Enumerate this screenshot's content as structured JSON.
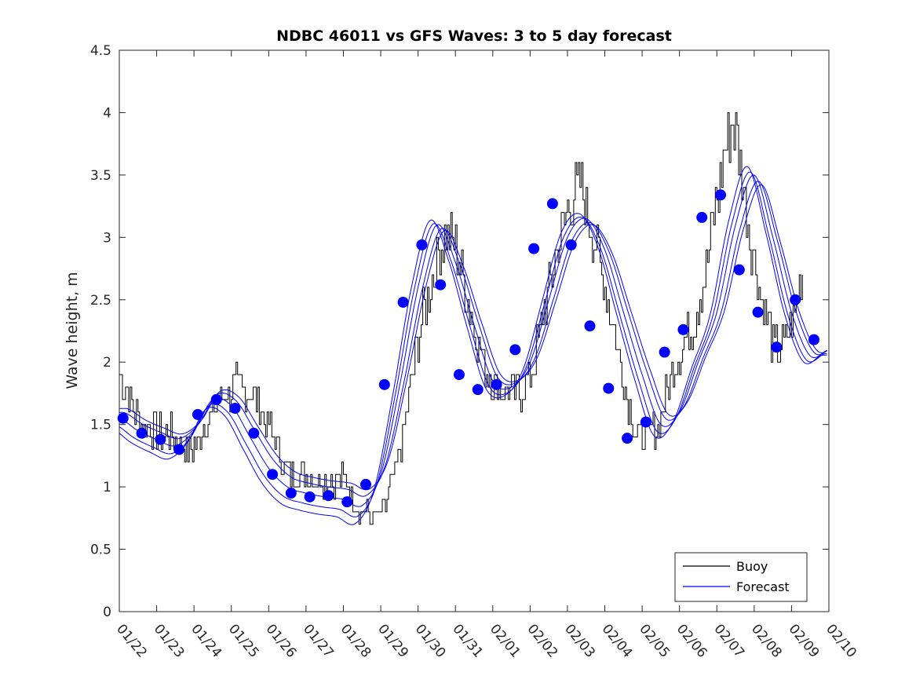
{
  "chart_data": {
    "type": "line",
    "title": "NDBC 46011 vs GFS Waves: 3 to 5 day forecast",
    "xlabel": "",
    "ylabel": "Wave height, m",
    "xlim_days": [
      0,
      19
    ],
    "ylim": [
      0,
      4.5
    ],
    "yticks": [
      "0",
      "0.5",
      "1",
      "1.5",
      "2",
      "2.5",
      "3",
      "3.5",
      "4",
      "4.5"
    ],
    "xticks": [
      "01/22",
      "01/23",
      "01/24",
      "01/25",
      "01/26",
      "01/27",
      "01/28",
      "01/29",
      "01/30",
      "01/31",
      "02/01",
      "02/02",
      "02/03",
      "02/04",
      "02/05",
      "02/06",
      "02/07",
      "02/08",
      "02/09",
      "02/10"
    ],
    "legend": {
      "location": "bottom-right",
      "entries": [
        "Buoy",
        "Forecast"
      ]
    },
    "colors": {
      "buoy": "#000000",
      "forecast": "#0000ff",
      "marker": "#0000ff",
      "axis": "#262626"
    },
    "series": [
      {
        "name": "Buoy",
        "x": [
          0,
          0.5,
          1,
          1.5,
          1.9,
          2.5,
          2.9,
          3.3,
          3.7,
          4.2,
          4.6,
          5,
          5.5,
          6,
          6.5,
          7,
          7.4,
          7.7,
          8,
          8.4,
          8.7,
          9,
          9.5,
          9.8,
          10.2,
          10.6,
          11,
          11.5,
          11.9,
          12.3,
          12.7,
          13,
          13.4,
          13.8,
          14,
          14.4,
          14.8,
          15.2,
          15.6,
          16,
          16.4,
          16.7,
          17,
          17.3,
          17.6,
          18,
          18.3
        ],
        "y": [
          1.9,
          1.55,
          1.45,
          1.4,
          1.3,
          1.6,
          1.75,
          1.8,
          1.65,
          1.35,
          1.1,
          1.1,
          1.05,
          1.05,
          0.8,
          0.78,
          1.15,
          1.6,
          2.2,
          2.7,
          3.0,
          2.9,
          2.3,
          1.95,
          1.8,
          1.75,
          1.9,
          2.6,
          3.1,
          3.4,
          3.0,
          2.6,
          2.0,
          1.5,
          1.4,
          1.5,
          1.9,
          2.2,
          2.6,
          3.3,
          3.9,
          3.4,
          2.8,
          2.4,
          2.1,
          2.3,
          2.7
        ]
      },
      {
        "name": "Forecast",
        "x": [
          0,
          0.5,
          1,
          1.5,
          2,
          2.5,
          3,
          3.5,
          4,
          4.5,
          5,
          5.5,
          6,
          6.5,
          7,
          7.5,
          8,
          8.5,
          9,
          9.5,
          10,
          10.5,
          11,
          11.5,
          12,
          12.5,
          13,
          13.5,
          14,
          14.5,
          15,
          15.5,
          16,
          16.5,
          17,
          17.5,
          18,
          18.5,
          19
        ],
        "y": [
          1.55,
          1.45,
          1.38,
          1.33,
          1.45,
          1.7,
          1.65,
          1.4,
          1.15,
          1.0,
          0.95,
          0.92,
          0.9,
          0.85,
          1.1,
          1.8,
          2.6,
          3.1,
          2.8,
          2.3,
          1.85,
          1.8,
          2.0,
          2.5,
          3.0,
          3.15,
          2.9,
          2.4,
          1.9,
          1.5,
          1.6,
          2.0,
          2.4,
          3.1,
          3.5,
          3.0,
          2.4,
          2.05,
          2.1
        ]
      }
    ],
    "markers": {
      "x": [
        0.1,
        0.6,
        1.1,
        1.6,
        2.1,
        2.6,
        3.1,
        3.6,
        4.1,
        4.6,
        5.1,
        5.6,
        6.1,
        6.6,
        7.1,
        7.6,
        8.1,
        8.6,
        9.1,
        9.6,
        10.1,
        10.6,
        11.1,
        11.6,
        12.1,
        12.6,
        13.1,
        13.6,
        14.1,
        14.6,
        15.1,
        15.6,
        16.1,
        16.6,
        17.1,
        17.6,
        18.1,
        18.6
      ],
      "y": [
        1.55,
        1.43,
        1.38,
        1.3,
        1.58,
        1.7,
        1.63,
        1.43,
        1.1,
        0.95,
        0.92,
        0.93,
        0.88,
        1.02,
        1.82,
        2.48,
        2.94,
        2.62,
        1.9,
        1.78,
        1.82,
        2.1,
        2.91,
        3.27,
        2.94,
        2.29,
        1.79,
        1.39,
        1.52,
        2.08,
        2.26,
        3.16,
        3.34,
        2.74,
        2.4,
        2.12,
        2.5,
        2.18
      ]
    }
  }
}
